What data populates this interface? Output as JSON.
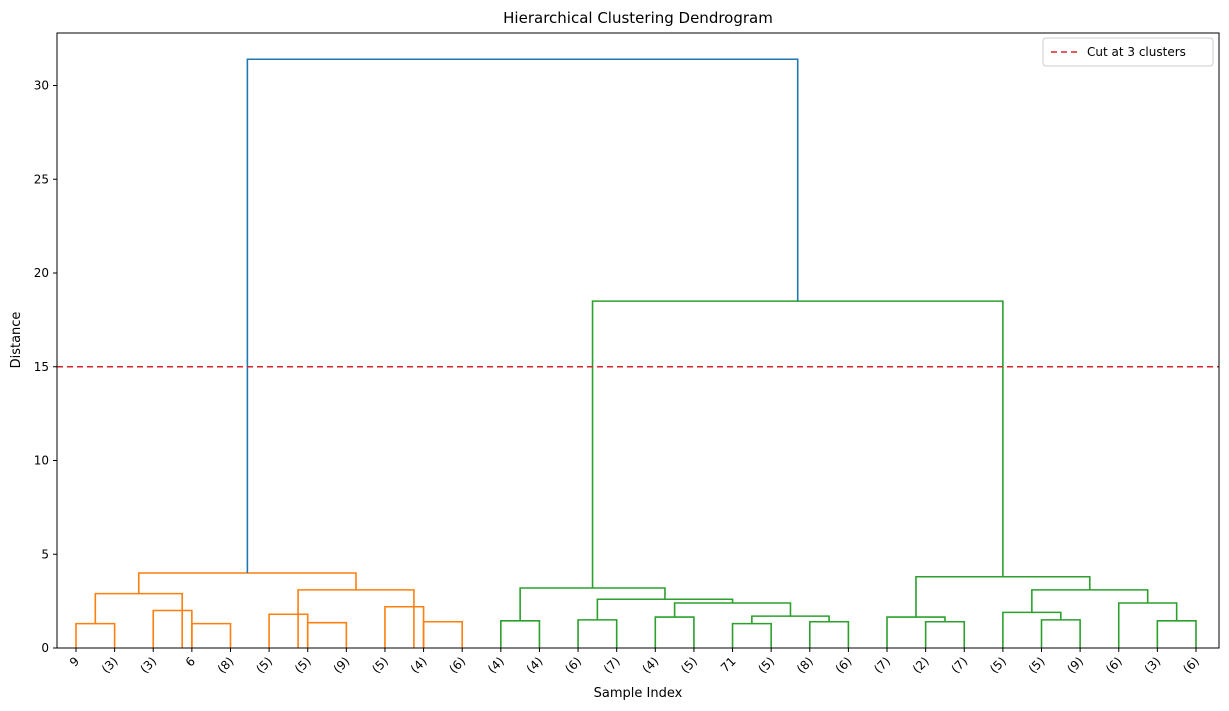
{
  "chart_data": {
    "type": "dendrogram",
    "title": "Hierarchical Clustering Dendrogram",
    "xlabel": "Sample Index",
    "ylabel": "Distance",
    "ylim": [
      0,
      32.8
    ],
    "yticks": [
      0,
      5,
      10,
      15,
      20,
      25,
      30
    ],
    "leaf_labels": [
      "9",
      "(3)",
      "(3)",
      "6",
      "(8)",
      "(5)",
      "(5)",
      "(9)",
      "(5)",
      "(4)",
      "(6)",
      "(4)",
      "(4)",
      "(6)",
      "(7)",
      "(4)",
      "(5)",
      "71",
      "(5)",
      "(8)",
      "(6)",
      "(7)",
      "(2)",
      "(7)",
      "(5)",
      "(5)",
      "(9)",
      "(6)",
      "(3)",
      "(6)"
    ],
    "cut_line": {
      "y": 15,
      "label": "Cut at 3 clusters",
      "color": "#d62728"
    },
    "colors": {
      "cluster_a": "#ff7f0e",
      "cluster_b": "#2ca02c",
      "root": "#1f77b4"
    },
    "legend_position": "top-right",
    "links": [
      {
        "left": 0,
        "right": 1,
        "height": 1.3,
        "color": "cluster_a"
      },
      {
        "left": 2,
        "right": 3,
        "height": 2.0,
        "color": "cluster_a"
      },
      {
        "left": 3,
        "right": 4,
        "height": 1.3,
        "color": "cluster_a"
      },
      {
        "left": 5,
        "right": 6,
        "height": 1.8,
        "color": "cluster_a"
      },
      {
        "left": 6,
        "right": 7,
        "height": 1.35,
        "color": "cluster_a"
      },
      {
        "left": 8,
        "right": 9,
        "height": 2.2,
        "color": "cluster_a"
      },
      {
        "left": 9,
        "right": 10,
        "height": 1.4,
        "color": "cluster_a"
      },
      {
        "left": 0.5,
        "right": 2.75,
        "height": 2.9,
        "color": "cluster_a"
      },
      {
        "left": 5.75,
        "right": 8.75,
        "height": 3.1,
        "color": "cluster_a"
      },
      {
        "left": 1.625,
        "right": 7.25,
        "height": 4.0,
        "color": "cluster_a"
      },
      {
        "left": 11,
        "right": 12,
        "height": 1.45,
        "color": "cluster_b"
      },
      {
        "left": 13,
        "right": 14,
        "height": 1.5,
        "color": "cluster_b"
      },
      {
        "left": 15,
        "right": 16,
        "height": 1.65,
        "color": "cluster_b"
      },
      {
        "left": 17,
        "right": 18,
        "height": 1.3,
        "color": "cluster_b"
      },
      {
        "left": 19,
        "right": 20,
        "height": 1.4,
        "color": "cluster_b"
      },
      {
        "left": 17.5,
        "right": 19.5,
        "height": 1.7,
        "color": "cluster_b"
      },
      {
        "left": 15.5,
        "right": 18.5,
        "height": 2.4,
        "color": "cluster_b"
      },
      {
        "left": 13.5,
        "right": 17,
        "height": 2.6,
        "color": "cluster_b"
      },
      {
        "left": 11.5,
        "right": 15.25,
        "height": 3.2,
        "color": "cluster_b"
      },
      {
        "left": 22,
        "right": 23,
        "height": 1.4,
        "color": "cluster_b"
      },
      {
        "left": 21,
        "right": 22.5,
        "height": 1.65,
        "color": "cluster_b"
      },
      {
        "left": 25,
        "right": 26,
        "height": 1.5,
        "color": "cluster_b"
      },
      {
        "left": 24,
        "right": 25.5,
        "height": 1.9,
        "color": "cluster_b"
      },
      {
        "left": 28,
        "right": 29,
        "height": 1.45,
        "color": "cluster_b"
      },
      {
        "left": 27,
        "right": 28.5,
        "height": 2.4,
        "color": "cluster_b"
      },
      {
        "left": 24.75,
        "right": 27.75,
        "height": 3.1,
        "color": "cluster_b"
      },
      {
        "left": 21.75,
        "right": 26.25,
        "height": 3.8,
        "color": "cluster_b"
      },
      {
        "left": 13.375,
        "right": 24,
        "height": 18.5,
        "color": "cluster_b"
      },
      {
        "left": 4.4375,
        "right": 18.6875,
        "height": 31.4,
        "color": "root"
      }
    ]
  }
}
